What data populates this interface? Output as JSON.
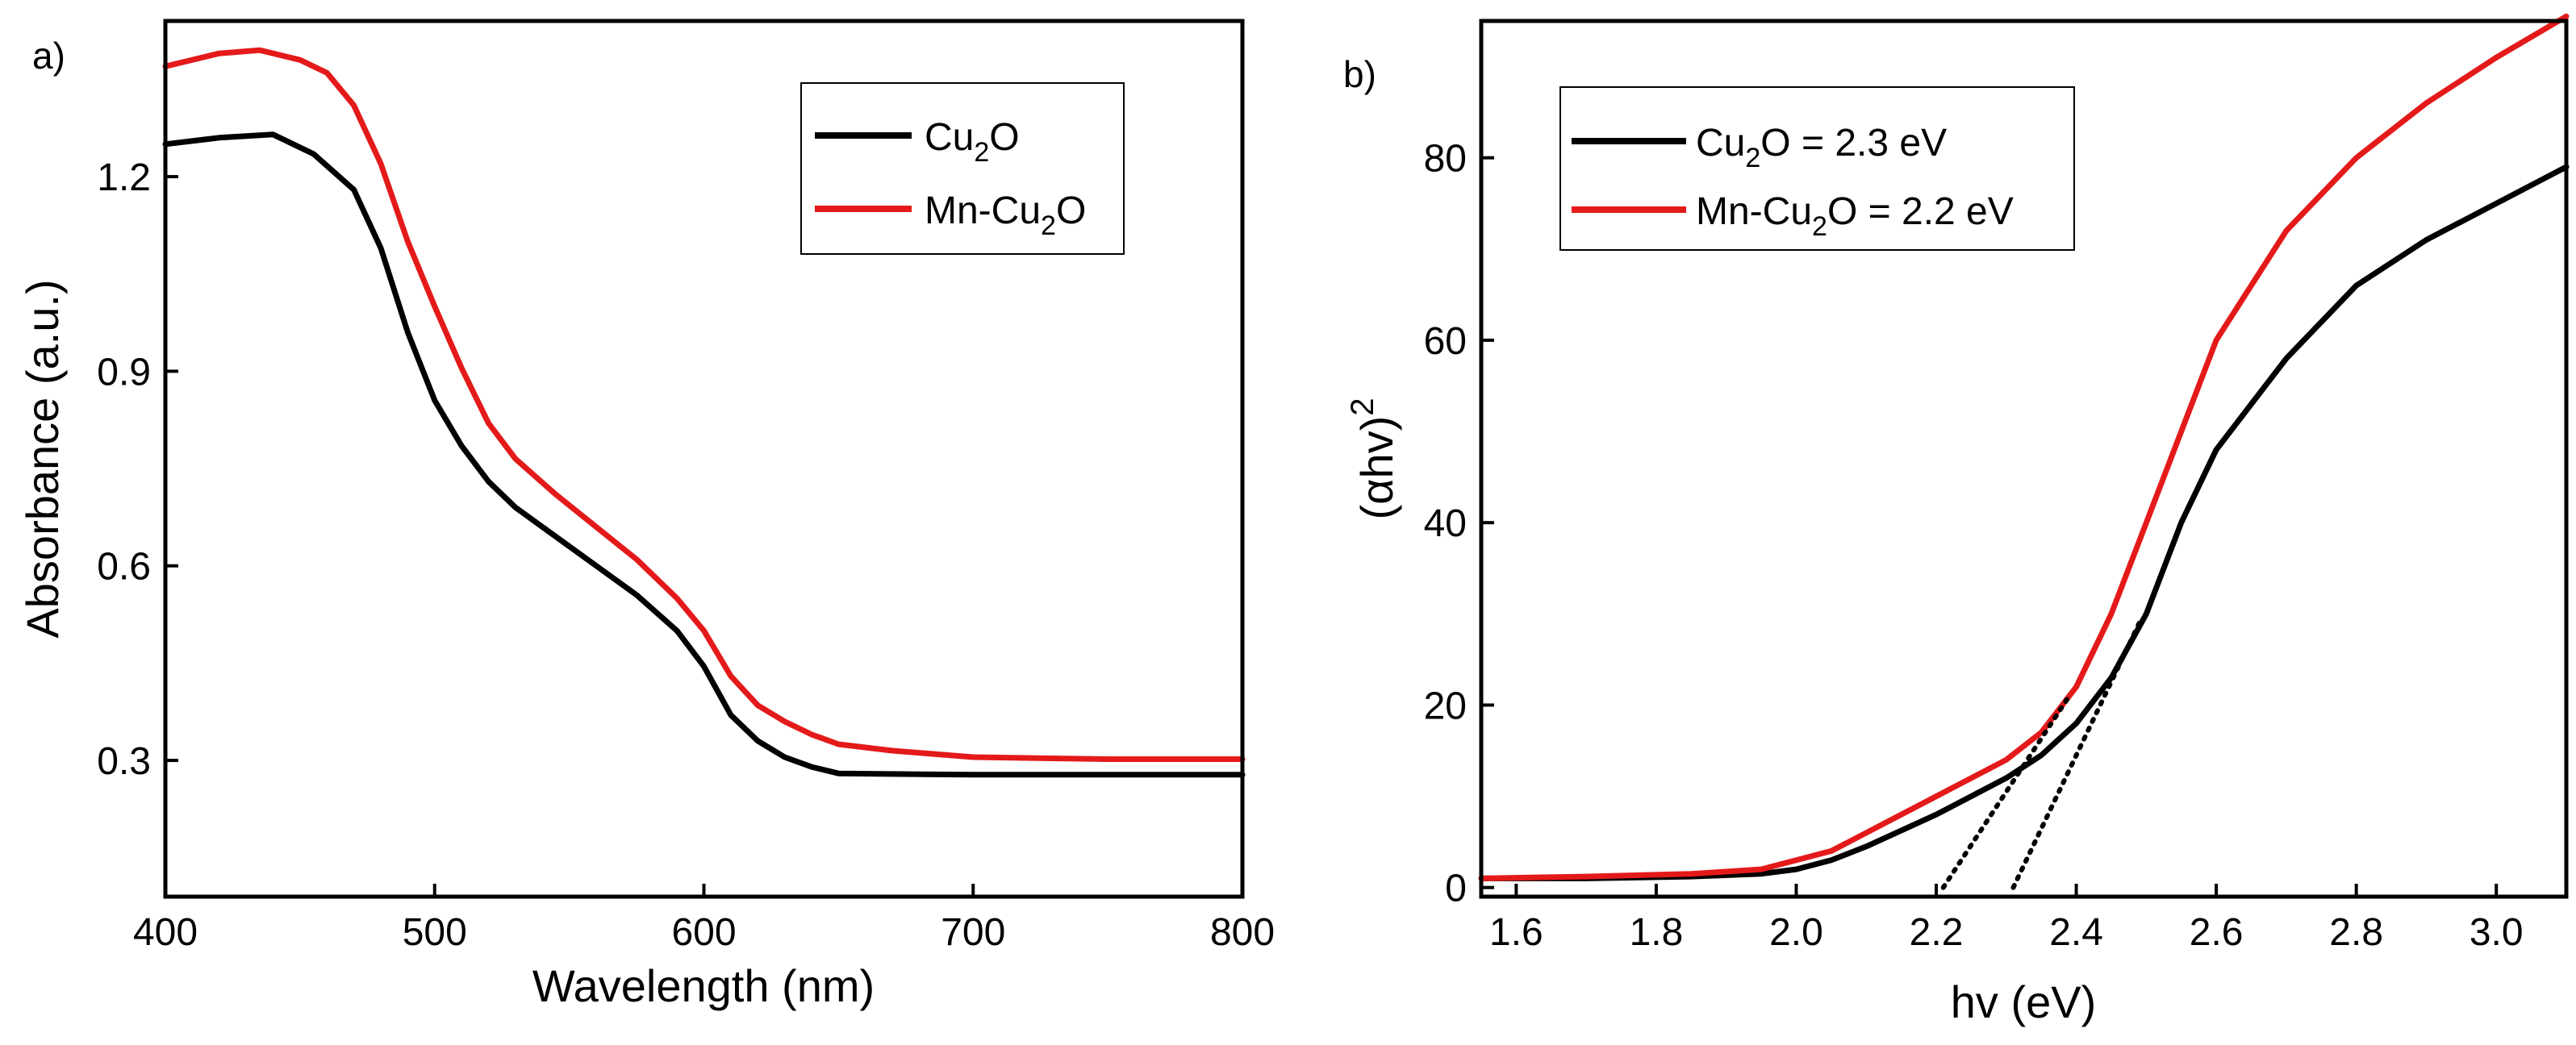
{
  "chart_data": [
    {
      "type": "line",
      "panel_label": "a)",
      "title": "",
      "xlabel": "Wavelength (nm)",
      "ylabel": "Absorbance (a.u.)",
      "xlim": [
        400,
        800
      ],
      "ylim": [
        0.09,
        1.44
      ],
      "xticks": [
        400,
        500,
        600,
        700,
        800
      ],
      "xtick_labels": [
        "400",
        "500",
        "600",
        "700",
        "800"
      ],
      "yticks": [
        0.3,
        0.6,
        0.9,
        1.2
      ],
      "ytick_labels": [
        "0.3",
        "0.6",
        "0.9",
        "1.2"
      ],
      "grid": false,
      "legend_position": "top-right",
      "series": [
        {
          "name": "Cu2O",
          "legend": {
            "base": "Cu",
            "sub": "2",
            "after": "O"
          },
          "color": "#000000",
          "x": [
            400,
            420,
            440,
            455,
            470,
            480,
            490,
            500,
            510,
            520,
            530,
            545,
            560,
            575,
            590,
            600,
            610,
            620,
            630,
            640,
            650,
            700,
            750,
            800
          ],
          "y": [
            1.25,
            1.26,
            1.265,
            1.235,
            1.18,
            1.09,
            0.96,
            0.855,
            0.785,
            0.73,
            0.69,
            0.645,
            0.6,
            0.555,
            0.5,
            0.445,
            0.37,
            0.33,
            0.305,
            0.29,
            0.28,
            0.278,
            0.278,
            0.278
          ]
        },
        {
          "name": "Mn-Cu2O",
          "legend": {
            "base": "Mn-Cu",
            "sub": "2",
            "after": "O"
          },
          "color": "#e41a1a",
          "x": [
            400,
            420,
            435,
            450,
            460,
            470,
            480,
            490,
            500,
            510,
            520,
            530,
            545,
            560,
            575,
            590,
            600,
            610,
            620,
            630,
            640,
            650,
            670,
            700,
            750,
            800
          ],
          "y": [
            1.37,
            1.39,
            1.395,
            1.38,
            1.36,
            1.31,
            1.22,
            1.1,
            1.0,
            0.905,
            0.82,
            0.765,
            0.71,
            0.66,
            0.61,
            0.55,
            0.5,
            0.43,
            0.385,
            0.36,
            0.34,
            0.325,
            0.315,
            0.305,
            0.302,
            0.302
          ]
        }
      ]
    },
    {
      "type": "line",
      "panel_label": "b)",
      "title": "",
      "xlabel": "hv (eV)",
      "ylabel": {
        "base": "(αhv)",
        "sup": "2"
      },
      "xlim": [
        1.55,
        3.1
      ],
      "ylim": [
        -1,
        95
      ],
      "xticks": [
        1.6,
        1.8,
        2.0,
        2.2,
        2.4,
        2.6,
        2.8,
        3.0
      ],
      "xtick_labels": [
        "1.6",
        "1.8",
        "2.0",
        "2.2",
        "2.4",
        "2.6",
        "2.8",
        "3.0"
      ],
      "yticks": [
        0,
        20,
        40,
        60,
        80
      ],
      "ytick_labels": [
        "0",
        "20",
        "40",
        "60",
        "80"
      ],
      "grid": false,
      "legend_position": "top-left",
      "series": [
        {
          "name": "Cu2O = 2.3 eV",
          "legend": {
            "base": "Cu",
            "sub": "2",
            "after": "O =  2.3 eV"
          },
          "color": "#000000",
          "x": [
            1.55,
            1.7,
            1.85,
            1.95,
            2.0,
            2.05,
            2.1,
            2.2,
            2.3,
            2.35,
            2.4,
            2.45,
            2.5,
            2.55,
            2.6,
            2.7,
            2.8,
            2.9,
            3.0,
            3.1
          ],
          "y": [
            1,
            1,
            1.2,
            1.5,
            2,
            3,
            4.5,
            8,
            12,
            14.5,
            18,
            23,
            30,
            40,
            48,
            58,
            66,
            71,
            75,
            79
          ]
        },
        {
          "name": "Mn-Cu2O = 2.2 eV",
          "legend": {
            "base": "Mn-Cu",
            "sub": "2",
            "after": "O = 2.2 eV"
          },
          "color": "#e41a1a",
          "x": [
            1.55,
            1.7,
            1.85,
            1.95,
            2.0,
            2.05,
            2.1,
            2.2,
            2.3,
            2.35,
            2.4,
            2.45,
            2.5,
            2.55,
            2.6,
            2.7,
            2.8,
            2.9,
            3.0,
            3.1
          ],
          "y": [
            1,
            1.2,
            1.5,
            2,
            3,
            4,
            6,
            10,
            14,
            17,
            22,
            30,
            40,
            50,
            60,
            72,
            80,
            86,
            91,
            95.5
          ]
        }
      ],
      "tangent_lines": [
        {
          "name": "Mn-Cu2O tangent",
          "color": "#000000",
          "style": "dotted",
          "x": [
            2.21,
            2.39
          ],
          "y": [
            0,
            21
          ]
        },
        {
          "name": "Cu2O tangent",
          "color": "#000000",
          "style": "dotted",
          "x": [
            2.31,
            2.49
          ],
          "y": [
            0,
            29
          ]
        }
      ]
    }
  ]
}
